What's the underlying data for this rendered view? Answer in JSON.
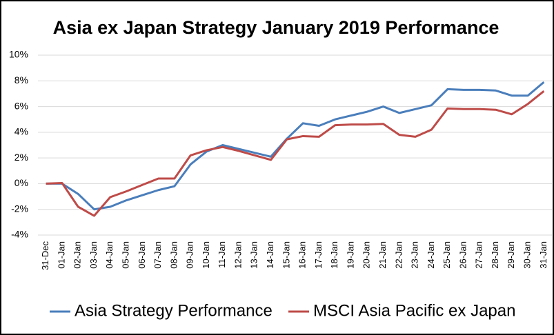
{
  "chart_data": {
    "type": "line",
    "title": "Asia ex Japan Strategy January 2019 Performance",
    "categories": [
      "31-Dec",
      "01-Jan",
      "02-Jan",
      "03-Jan",
      "04-Jan",
      "05-Jan",
      "06-Jan",
      "07-Jan",
      "08-Jan",
      "09-Jan",
      "10-Jan",
      "11-Jan",
      "12-Jan",
      "13-Jan",
      "14-Jan",
      "15-Jan",
      "16-Jan",
      "17-Jan",
      "18-Jan",
      "19-Jan",
      "20-Jan",
      "21-Jan",
      "22-Jan",
      "23-Jan",
      "24-Jan",
      "25-Jan",
      "26-Jan",
      "27-Jan",
      "28-Jan",
      "29-Jan",
      "30-Jan",
      "31-Jan"
    ],
    "series": [
      {
        "name": "Asia Strategy Performance",
        "color": "#4a7ebb",
        "values": [
          0,
          0,
          -0.8,
          -2.0,
          -1.8,
          -1.3,
          -0.9,
          -0.5,
          -0.2,
          1.5,
          2.5,
          3.0,
          2.7,
          2.4,
          2.1,
          3.5,
          4.7,
          4.5,
          5.0,
          5.3,
          5.6,
          6.0,
          5.5,
          5.8,
          6.1,
          7.35,
          7.3,
          7.3,
          7.25,
          6.85,
          6.85,
          7.9
        ]
      },
      {
        "name": "MSCI Asia Pacific ex Japan",
        "color": "#be4b48",
        "values": [
          0,
          0.05,
          -1.8,
          -2.5,
          -1.05,
          -0.6,
          -0.1,
          0.4,
          0.4,
          2.2,
          2.6,
          2.85,
          2.55,
          2.2,
          1.85,
          3.45,
          3.7,
          3.65,
          4.55,
          4.6,
          4.6,
          4.65,
          3.8,
          3.65,
          4.2,
          5.85,
          5.8,
          5.8,
          5.75,
          5.4,
          6.2,
          7.2
        ]
      }
    ],
    "ylim": [
      -4,
      10
    ],
    "yticks": [
      {
        "value": -4,
        "label": "-4%"
      },
      {
        "value": -2,
        "label": "-2%"
      },
      {
        "value": 0,
        "label": "0%"
      },
      {
        "value": 2,
        "label": "2%"
      },
      {
        "value": 4,
        "label": "4%"
      },
      {
        "value": 6,
        "label": "6%"
      },
      {
        "value": 8,
        "label": "8%"
      },
      {
        "value": 10,
        "label": "10%"
      }
    ],
    "grid": true,
    "legend": "bottom"
  }
}
